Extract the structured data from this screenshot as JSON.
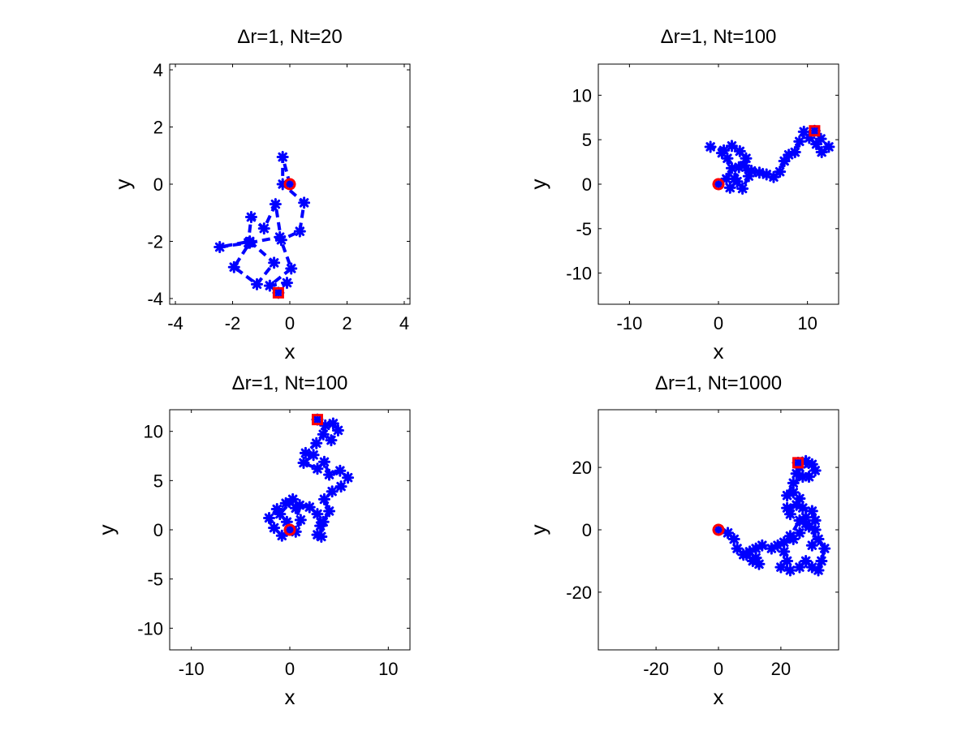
{
  "colors": {
    "path": "#0000ff",
    "start_marker": "#ff0000",
    "end_marker": "#ff0000",
    "axes": "#000000"
  },
  "chart_data": [
    {
      "type": "scatter",
      "title": "Δr=1, Nt=20",
      "xlabel": "x",
      "ylabel": "y",
      "xlim": [
        -4.2,
        4.2
      ],
      "ylim": [
        -4.2,
        4.2
      ],
      "xticks": [
        -4,
        -2,
        0,
        2,
        4
      ],
      "yticks": [
        -4,
        -2,
        0,
        2,
        4
      ],
      "xtick_labels": [
        "-4",
        "-2",
        "0",
        "2",
        "4"
      ],
      "ytick_labels": [
        "-4",
        "-2",
        "0",
        "2",
        "4"
      ],
      "grid": false,
      "legend": "none",
      "line_style": "dashed",
      "marker": "star",
      "start": [
        0,
        0
      ],
      "end": [
        -0.4,
        -3.8
      ],
      "path": [
        [
          0,
          0
        ],
        [
          -0.25,
          0.95
        ],
        [
          -0.25,
          0.0
        ],
        [
          0.5,
          -0.65
        ],
        [
          0.35,
          -1.65
        ],
        [
          -0.3,
          -1.95
        ],
        [
          -0.5,
          -0.7
        ],
        [
          -0.9,
          -1.55
        ],
        [
          -1.35,
          -1.15
        ],
        [
          -1.45,
          -2.05
        ],
        [
          -2.45,
          -2.2
        ],
        [
          -1.4,
          -2.0
        ],
        [
          -0.55,
          -2.75
        ],
        [
          -1.15,
          -3.5
        ],
        [
          -1.95,
          -2.9
        ],
        [
          -1.4,
          -2.05
        ],
        [
          -0.35,
          -1.85
        ],
        [
          0.05,
          -2.95
        ],
        [
          -0.7,
          -3.55
        ],
        [
          -0.1,
          -3.45
        ],
        [
          -0.4,
          -3.8
        ]
      ]
    },
    {
      "type": "scatter",
      "title": "Δr=1, Nt=100",
      "xlabel": "x",
      "ylabel": "y",
      "xlim": [
        -13.5,
        13.5
      ],
      "ylim": [
        -13.5,
        13.5
      ],
      "xticks": [
        -10,
        0,
        10
      ],
      "yticks": [
        -10,
        -5,
        0,
        5,
        10
      ],
      "xtick_labels": [
        "-10",
        "0",
        "10"
      ],
      "ytick_labels": [
        "-10",
        "-5",
        "0",
        "5",
        "10"
      ],
      "grid": false,
      "legend": "none",
      "line_style": "dashed",
      "marker": "star",
      "start": [
        0,
        0
      ],
      "end": [
        10.8,
        6.0
      ],
      "path": [
        [
          0,
          0
        ],
        [
          0.9,
          0.6
        ],
        [
          1.5,
          1.8
        ],
        [
          1.0,
          2.9
        ],
        [
          0.6,
          3.8
        ],
        [
          -0.9,
          4.2
        ],
        [
          0.4,
          3.5
        ],
        [
          1.5,
          4.3
        ],
        [
          2.4,
          3.7
        ],
        [
          3.1,
          2.9
        ],
        [
          2.3,
          1.9
        ],
        [
          1.8,
          0.6
        ],
        [
          1.3,
          -0.4
        ],
        [
          2.1,
          0.3
        ],
        [
          2.7,
          -0.5
        ],
        [
          3.4,
          0.9
        ],
        [
          2.9,
          2.1
        ],
        [
          3.7,
          1.5
        ],
        [
          4.6,
          1.3
        ],
        [
          5.4,
          1.1
        ],
        [
          6.2,
          0.8
        ],
        [
          6.9,
          1.4
        ],
        [
          7.4,
          2.6
        ],
        [
          7.9,
          3.3
        ],
        [
          8.6,
          3.6
        ],
        [
          9.1,
          4.8
        ],
        [
          9.6,
          5.9
        ],
        [
          10.2,
          5.2
        ],
        [
          11.0,
          4.5
        ],
        [
          11.6,
          3.6
        ],
        [
          12.4,
          4.2
        ],
        [
          11.5,
          5.1
        ],
        [
          10.8,
          6.0
        ]
      ]
    },
    {
      "type": "scatter",
      "title": "Δr=1, Nt=100",
      "xlabel": "x",
      "ylabel": "y",
      "xlim": [
        -12.2,
        12.2
      ],
      "ylim": [
        -12.2,
        12.2
      ],
      "xticks": [
        -10,
        0,
        10
      ],
      "yticks": [
        -10,
        -5,
        0,
        5,
        10
      ],
      "xtick_labels": [
        "-10",
        "0",
        "10"
      ],
      "ytick_labels": [
        "-10",
        "-5",
        "0",
        "5",
        "10"
      ],
      "grid": false,
      "legend": "none",
      "line_style": "dashed",
      "marker": "star",
      "start": [
        0,
        0
      ],
      "end": [
        2.8,
        11.2
      ],
      "path": [
        [
          0,
          0
        ],
        [
          -0.8,
          -0.6
        ],
        [
          -1.6,
          0.2
        ],
        [
          -2.1,
          1.2
        ],
        [
          -1.3,
          2.1
        ],
        [
          -0.4,
          2.7
        ],
        [
          0.6,
          2.2
        ],
        [
          1.1,
          1.0
        ],
        [
          0.6,
          -0.2
        ],
        [
          -0.3,
          0.8
        ],
        [
          -1.0,
          1.6
        ],
        [
          0.3,
          3.1
        ],
        [
          1.0,
          2.5
        ],
        [
          2.0,
          2.3
        ],
        [
          2.8,
          1.6
        ],
        [
          3.1,
          0.4
        ],
        [
          2.8,
          -0.5
        ],
        [
          3.2,
          -0.7
        ],
        [
          3.4,
          0.8
        ],
        [
          4.0,
          1.9
        ],
        [
          3.5,
          3.1
        ],
        [
          4.3,
          3.9
        ],
        [
          5.2,
          4.4
        ],
        [
          5.9,
          5.3
        ],
        [
          5.1,
          6.0
        ],
        [
          4.0,
          5.6
        ],
        [
          3.5,
          6.9
        ],
        [
          2.8,
          6.2
        ],
        [
          1.4,
          6.8
        ],
        [
          2.4,
          7.6
        ],
        [
          1.6,
          7.8
        ],
        [
          2.7,
          8.8
        ],
        [
          3.4,
          9.7
        ],
        [
          4.2,
          9.1
        ],
        [
          4.9,
          10.1
        ],
        [
          4.4,
          10.8
        ],
        [
          3.6,
          10.6
        ],
        [
          2.8,
          11.2
        ]
      ]
    },
    {
      "type": "scatter",
      "title": "Δr=1, Nt=1000",
      "xlabel": "x",
      "ylabel": "y",
      "xlim": [
        -38.5,
        38.5
      ],
      "ylim": [
        -38.5,
        38.5
      ],
      "xticks": [
        -20,
        0,
        20
      ],
      "yticks": [
        -20,
        0,
        20
      ],
      "xtick_labels": [
        "-20",
        "0",
        "20"
      ],
      "ytick_labels": [
        "-20",
        "0",
        "20"
      ],
      "grid": false,
      "legend": "none",
      "line_style": "dashed",
      "marker": "star",
      "start": [
        0,
        0
      ],
      "end": [
        25.5,
        21.5
      ],
      "path": [
        [
          0,
          0
        ],
        [
          3,
          -1
        ],
        [
          5,
          -3
        ],
        [
          6,
          -6
        ],
        [
          8,
          -8
        ],
        [
          10,
          -7
        ],
        [
          12,
          -9
        ],
        [
          13,
          -11
        ],
        [
          11,
          -10
        ],
        [
          9,
          -8
        ],
        [
          12,
          -6
        ],
        [
          14,
          -5
        ],
        [
          17,
          -6
        ],
        [
          19,
          -5
        ],
        [
          21,
          -7
        ],
        [
          22,
          -10
        ],
        [
          20,
          -12
        ],
        [
          23,
          -13
        ],
        [
          26,
          -12
        ],
        [
          28,
          -10
        ],
        [
          30,
          -12
        ],
        [
          32,
          -13
        ],
        [
          33,
          -10
        ],
        [
          34,
          -6
        ],
        [
          32,
          -3
        ],
        [
          30,
          -5
        ],
        [
          31,
          0
        ],
        [
          28,
          2
        ],
        [
          26,
          -1
        ],
        [
          24,
          -3
        ],
        [
          21,
          -4
        ],
        [
          23,
          -2
        ],
        [
          26,
          3
        ],
        [
          28,
          4
        ],
        [
          29,
          1
        ],
        [
          31,
          3
        ],
        [
          30,
          6
        ],
        [
          27,
          7
        ],
        [
          25,
          8
        ],
        [
          22,
          7
        ],
        [
          23,
          5
        ],
        [
          26,
          10
        ],
        [
          24,
          12
        ],
        [
          22,
          11
        ],
        [
          24,
          15
        ],
        [
          27,
          17
        ],
        [
          25,
          18
        ],
        [
          26,
          20
        ],
        [
          28,
          22
        ],
        [
          30,
          21
        ],
        [
          31,
          19
        ],
        [
          29,
          17
        ],
        [
          28,
          22
        ],
        [
          25.5,
          21.5
        ]
      ]
    }
  ]
}
